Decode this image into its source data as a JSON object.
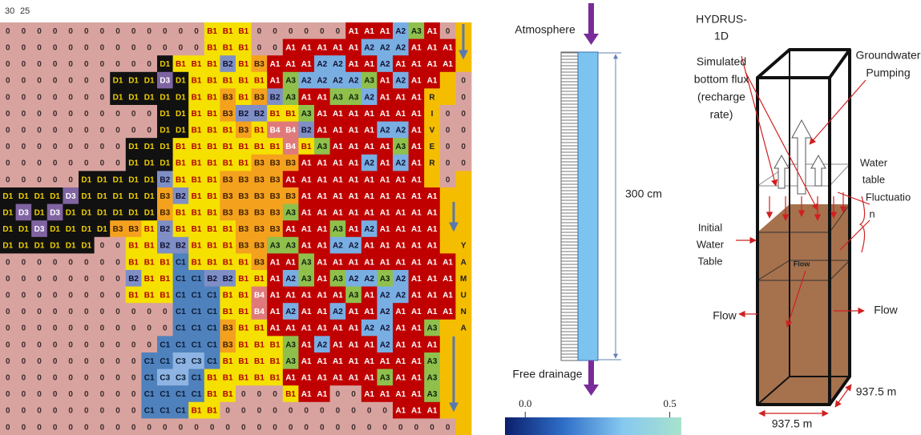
{
  "grid": {
    "corner_labels": [
      30,
      25
    ],
    "cell_styles": {
      "0": [
        "#d8a39f",
        "#3a2a2a"
      ],
      "A1": [
        "#c00000",
        "#ffffff"
      ],
      "A2": [
        "#79aee3",
        "#101030"
      ],
      "A3": [
        "#8fc04c",
        "#102010"
      ],
      "B1": [
        "#f5e000",
        "#b00000"
      ],
      "B2": [
        "#7f8fc6",
        "#101030"
      ],
      "B3": [
        "#f4a11e",
        "#402000"
      ],
      "B4": [
        "#e07a7a",
        "#ffffff"
      ],
      "C1": [
        "#4f81bd",
        "#0a1a30"
      ],
      "C3": [
        "#8db4e2",
        "#0a1a30"
      ],
      "D1": [
        "#111111",
        "#f0d000"
      ],
      "D3": [
        "#8064a2",
        "#ffffff"
      ]
    },
    "river_style": [
      "#f5bd00",
      "#202020"
    ],
    "rows": [
      [
        "0",
        "0",
        "0",
        "0",
        "0",
        "0",
        "0",
        "0",
        "0",
        "0",
        "0",
        "0",
        "0",
        "B1",
        "B1",
        "B1",
        "0",
        "0",
        "0",
        "0",
        "0",
        "0",
        "A1",
        "A1",
        "A1",
        "A2",
        "A3",
        "A1",
        "0",
        null
      ],
      [
        "0",
        "0",
        "0",
        "0",
        "0",
        "0",
        "0",
        "0",
        "0",
        "0",
        "0",
        "0",
        "0",
        "B1",
        "B1",
        "B1",
        "0",
        "0",
        "A1",
        "A1",
        "A1",
        "A1",
        "A1",
        "A2",
        "A2",
        "A2",
        "A1",
        "A1",
        "A1",
        null
      ],
      [
        "0",
        "0",
        "0",
        "0",
        "0",
        "0",
        "0",
        "0",
        "0",
        "0",
        "D1",
        "B1",
        "B1",
        "B1",
        "B2",
        "B1",
        "B3",
        "A1",
        "A1",
        "A1",
        "A2",
        "A2",
        "A1",
        "A1",
        "A2",
        "A1",
        "A1",
        "A1",
        "A1",
        null
      ],
      [
        "0",
        "0",
        "0",
        "0",
        "0",
        "0",
        "0",
        "D1",
        "D1",
        "D1",
        "D3",
        "D1",
        "B1",
        "B1",
        "B1",
        "B1",
        "B1",
        "A1",
        "A3",
        "A2",
        "A2",
        "A2",
        "A2",
        "A3",
        "A1",
        "A2",
        "A1",
        "A1",
        null,
        "0"
      ],
      [
        "0",
        "0",
        "0",
        "0",
        "0",
        "0",
        "0",
        "D1",
        "D1",
        "D1",
        "D1",
        "D1",
        "B1",
        "B1",
        "B3",
        "B1",
        "B3",
        "B2",
        "A3",
        "A1",
        "A1",
        "A3",
        "A3",
        "A2",
        "A1",
        "A1",
        "A1",
        "R",
        null,
        "0"
      ],
      [
        "0",
        "0",
        "0",
        "0",
        "0",
        "0",
        "0",
        "0",
        "0",
        "0",
        "D1",
        "D1",
        "B1",
        "B1",
        "B3",
        "B2",
        "B2",
        "B1",
        "B1",
        "A3",
        "A1",
        "A1",
        "A1",
        "A1",
        "A1",
        "A1",
        "A1",
        "I",
        "0",
        "0"
      ],
      [
        "0",
        "0",
        "0",
        "0",
        "0",
        "0",
        "0",
        "0",
        "0",
        "0",
        "D1",
        "D1",
        "B1",
        "B1",
        "B1",
        "B3",
        "B1",
        "B4",
        "B4",
        "B2",
        "A1",
        "A1",
        "A1",
        "A1",
        "A2",
        "A2",
        "A1",
        "V",
        "0",
        "0"
      ],
      [
        "0",
        "0",
        "0",
        "0",
        "0",
        "0",
        "0",
        "0",
        "D1",
        "D1",
        "D1",
        "B1",
        "B1",
        "B1",
        "B1",
        "B1",
        "B1",
        "B1",
        "B4",
        "B1",
        "A3",
        "A1",
        "A1",
        "A1",
        "A1",
        "A3",
        "A1",
        "E",
        "0",
        "0"
      ],
      [
        "0",
        "0",
        "0",
        "0",
        "0",
        "0",
        "0",
        "0",
        "D1",
        "D1",
        "D1",
        "B1",
        "B1",
        "B1",
        "B1",
        "B1",
        "B3",
        "B3",
        "B3",
        "A1",
        "A1",
        "A1",
        "A1",
        "A2",
        "A1",
        "A2",
        "A1",
        "R",
        "0",
        "0"
      ],
      [
        "0",
        "0",
        "0",
        "0",
        "0",
        "D1",
        "D1",
        "D1",
        "D1",
        "D1",
        "B2",
        "B1",
        "B1",
        "B1",
        "B3",
        "B3",
        "B3",
        "B3",
        "A1",
        "A1",
        "A1",
        "A1",
        "A1",
        "A1",
        "A1",
        "A1",
        "A1",
        null,
        "0",
        null
      ],
      [
        "D1",
        "D1",
        "D1",
        "D1",
        "D3",
        "D1",
        "D1",
        "D1",
        "D1",
        "D1",
        "B3",
        "B2",
        "B1",
        "B1",
        "B3",
        "B3",
        "B3",
        "B3",
        "B3",
        "A1",
        "A1",
        "A1",
        "A1",
        "A1",
        "A1",
        "A1",
        "A1",
        "A1",
        null,
        null
      ],
      [
        "D1",
        "D3",
        "D1",
        "D3",
        "D1",
        "D1",
        "D1",
        "D1",
        "D1",
        "D1",
        "B3",
        "B1",
        "B1",
        "B1",
        "B3",
        "B3",
        "B3",
        "B3",
        "A3",
        "A1",
        "A1",
        "A1",
        "A1",
        "A1",
        "A1",
        "A1",
        "A1",
        "A1",
        null,
        null
      ],
      [
        "D1",
        "D1",
        "D3",
        "D1",
        "D1",
        "D1",
        "D1",
        "B3",
        "B3",
        "B1",
        "B2",
        "B1",
        "B1",
        "B1",
        "B1",
        "B3",
        "B3",
        "B3",
        "A1",
        "A1",
        "A1",
        "A3",
        "A1",
        "A2",
        "A1",
        "A1",
        "A1",
        "A1",
        null,
        null
      ],
      [
        "D1",
        "D1",
        "D1",
        "D1",
        "D1",
        "D1",
        "0",
        "0",
        "B1",
        "B1",
        "B2",
        "B2",
        "B1",
        "B1",
        "B1",
        "B3",
        "B3",
        "A3",
        "A3",
        "A1",
        "A1",
        "A2",
        "A2",
        "A1",
        "A1",
        "A1",
        "A1",
        "A1",
        null,
        "Y"
      ],
      [
        "0",
        "0",
        "0",
        "0",
        "0",
        "0",
        "0",
        "0",
        "B1",
        "B1",
        "B1",
        "C1",
        "B1",
        "B1",
        "B1",
        "B1",
        "B3",
        "A1",
        "A1",
        "A3",
        "A1",
        "A1",
        "A1",
        "A1",
        "A1",
        "A1",
        "A1",
        "A1",
        "A1",
        "A"
      ],
      [
        "0",
        "0",
        "0",
        "0",
        "0",
        "0",
        "0",
        "0",
        "B2",
        "B1",
        "B1",
        "C1",
        "C1",
        "B2",
        "B2",
        "B1",
        "B1",
        "A1",
        "A2",
        "A3",
        "A1",
        "A3",
        "A2",
        "A2",
        "A3",
        "A2",
        "A1",
        "A1",
        "A1",
        "M"
      ],
      [
        "0",
        "0",
        "0",
        "0",
        "0",
        "0",
        "0",
        "0",
        "B1",
        "B1",
        "B1",
        "C1",
        "C1",
        "C1",
        "B1",
        "B1",
        "B4",
        "A1",
        "A1",
        "A1",
        "A1",
        "A1",
        "A3",
        "A1",
        "A2",
        "A2",
        "A1",
        "A1",
        "A1",
        "U"
      ],
      [
        "0",
        "0",
        "0",
        "0",
        "0",
        "0",
        "0",
        "0",
        "0",
        "0",
        "0",
        "C1",
        "C1",
        "C1",
        "B1",
        "B1",
        "B4",
        "A1",
        "A2",
        "A1",
        "A1",
        "A2",
        "A1",
        "A1",
        "A2",
        "A1",
        "A1",
        "A1",
        "A1",
        "N"
      ],
      [
        "0",
        "0",
        "0",
        "0",
        "0",
        "0",
        "0",
        "0",
        "0",
        "0",
        "0",
        "C1",
        "C1",
        "C1",
        "B3",
        "B1",
        "B1",
        "A1",
        "A1",
        "A1",
        "A1",
        "A1",
        "A1",
        "A2",
        "A2",
        "A1",
        "A1",
        "A3",
        null,
        "A"
      ],
      [
        "0",
        "0",
        "0",
        "0",
        "0",
        "0",
        "0",
        "0",
        "0",
        "0",
        "C1",
        "C1",
        "C1",
        "C1",
        "B3",
        "B1",
        "B1",
        "B1",
        "A3",
        "A1",
        "A2",
        "A1",
        "A1",
        "A1",
        "A2",
        "A1",
        "A1",
        "A1",
        null,
        null
      ],
      [
        "0",
        "0",
        "0",
        "0",
        "0",
        "0",
        "0",
        "0",
        "0",
        "C1",
        "C1",
        "C3",
        "C3",
        "C1",
        "B1",
        "B1",
        "B1",
        "B1",
        "A3",
        "A1",
        "A1",
        "A1",
        "A1",
        "A1",
        "A1",
        "A1",
        "A1",
        "A3",
        null,
        null
      ],
      [
        "0",
        "0",
        "0",
        "0",
        "0",
        "0",
        "0",
        "0",
        "0",
        "C1",
        "C3",
        "C3",
        "C1",
        "B1",
        "B1",
        "B1",
        "B1",
        "B1",
        "A1",
        "A1",
        "A1",
        "A1",
        "A1",
        "A1",
        "A3",
        "A1",
        "A1",
        "A3",
        null,
        null
      ],
      [
        "0",
        "0",
        "0",
        "0",
        "0",
        "0",
        "0",
        "0",
        "0",
        "C1",
        "C1",
        "C1",
        "C1",
        "B1",
        "B1",
        "0",
        "0",
        "0",
        "B1",
        "A1",
        "A1",
        "0",
        "0",
        "A1",
        "A1",
        "A1",
        "A1",
        "A3",
        null,
        null
      ],
      [
        "0",
        "0",
        "0",
        "0",
        "0",
        "0",
        "0",
        "0",
        "0",
        "C1",
        "C1",
        "C1",
        "B1",
        "B1",
        "0",
        "0",
        "0",
        "0",
        "0",
        "0",
        "0",
        "0",
        "0",
        "0",
        "0",
        "A1",
        "A1",
        "A1",
        null,
        null
      ],
      [
        "0",
        "0",
        "0",
        "0",
        "0",
        "0",
        "0",
        "0",
        "0",
        "0",
        "0",
        "0",
        "0",
        "0",
        "0",
        "0",
        "0",
        "0",
        "0",
        "0",
        "0",
        "0",
        "0",
        "0",
        "0",
        "0",
        "0",
        "0",
        "0",
        null
      ]
    ]
  },
  "column_diagram": {
    "top_label": "Atmosphere",
    "bottom_label": "Free drainage",
    "height_label": "300 cm",
    "colorbar": {
      "range": [
        -0.07,
        0.54
      ],
      "ticks": [
        {
          "value": 0,
          "label": "0.0"
        },
        0.5
      ],
      "colors": [
        "#0b1f6b",
        "#2f6fc8",
        "#86c8f0",
        "#a8e2cc"
      ]
    }
  },
  "box_diagram": {
    "hydrus_label": [
      "HYDRUS-",
      "1D",
      "Simulated",
      "bottom flux",
      "(recharge",
      "rate)"
    ],
    "pumping_label": [
      "Groundwater",
      "Pumping"
    ],
    "fluctuation_label": [
      "Water",
      "table",
      "Fluctuatio",
      "n"
    ],
    "initial_label": [
      "Initial",
      "Water",
      "Table"
    ],
    "flow_labels": [
      "Flow",
      "Flow",
      "Flow"
    ],
    "dimension_labels": [
      "937.5 m",
      "937.5 m"
    ]
  }
}
